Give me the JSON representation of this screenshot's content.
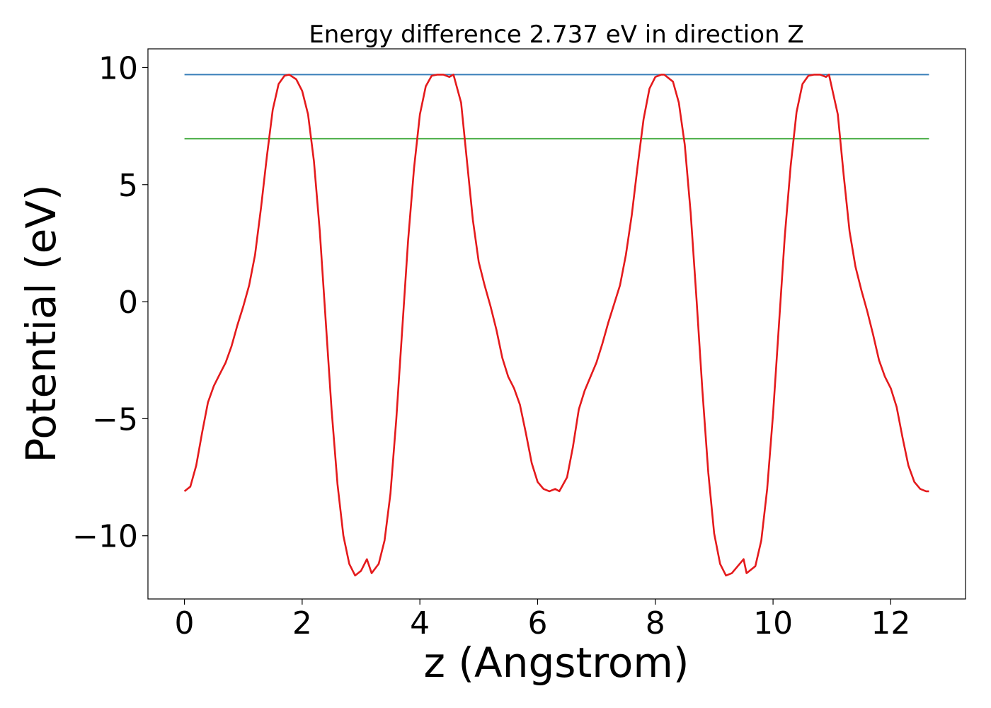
{
  "chart_data": {
    "type": "line",
    "title": "Energy difference 2.737 eV in direction Z",
    "xlabel": "z (Angstrom)",
    "ylabel": "Potential (eV)",
    "xlim": [
      -0.62,
      13.27
    ],
    "ylim": [
      -12.7,
      10.8
    ],
    "xticks": [
      0,
      2,
      4,
      6,
      8,
      10,
      12
    ],
    "xtick_labels": [
      "0",
      "2",
      "4",
      "6",
      "8",
      "10",
      "12"
    ],
    "yticks": [
      -10,
      -5,
      0,
      5,
      10
    ],
    "ytick_labels": [
      "−10",
      "−5",
      "0",
      "5",
      "10"
    ],
    "grid": false,
    "legend": "none",
    "series": [
      {
        "color": "#e41a1c",
        "x": [
          0.0,
          0.1,
          0.2,
          0.3,
          0.4,
          0.5,
          0.6,
          0.7,
          0.8,
          0.9,
          1.0,
          1.1,
          1.2,
          1.3,
          1.4,
          1.5,
          1.6,
          1.7,
          1.78,
          1.9,
          2.0,
          2.1,
          2.2,
          2.3,
          2.4,
          2.5,
          2.6,
          2.7,
          2.8,
          2.9,
          3.0,
          3.1,
          3.18,
          3.3,
          3.4,
          3.5,
          3.6,
          3.7,
          3.8,
          3.9,
          4.0,
          4.1,
          4.2,
          4.3,
          4.4,
          4.5,
          4.57,
          4.7,
          4.8,
          4.9,
          5.0,
          5.1,
          5.2,
          5.3,
          5.4,
          5.5,
          5.6,
          5.7,
          5.8,
          5.9,
          6.0,
          6.1,
          6.2,
          6.3,
          6.37,
          6.5,
          6.6,
          6.7,
          6.8,
          6.9,
          7.0,
          7.1,
          7.2,
          7.3,
          7.4,
          7.5,
          7.6,
          7.7,
          7.8,
          7.9,
          8.0,
          8.1,
          8.15,
          8.3,
          8.4,
          8.5,
          8.6,
          8.7,
          8.8,
          8.9,
          9.0,
          9.1,
          9.2,
          9.3,
          9.4,
          9.5,
          9.55,
          9.7,
          9.8,
          9.9,
          10.0,
          10.1,
          10.2,
          10.3,
          10.4,
          10.5,
          10.6,
          10.7,
          10.8,
          10.9,
          10.95,
          11.1,
          11.2,
          11.3,
          11.4,
          11.5,
          11.6,
          11.7,
          11.8,
          11.9,
          12.0,
          12.1,
          12.2,
          12.3,
          12.4,
          12.5,
          12.6,
          12.65
        ],
        "y": [
          -8.1,
          -7.9,
          -7.0,
          -5.6,
          -4.3,
          -3.6,
          -3.1,
          -2.6,
          -1.9,
          -1.0,
          -0.2,
          0.7,
          2.0,
          4.0,
          6.2,
          8.2,
          9.3,
          9.65,
          9.7,
          9.5,
          9.0,
          8.0,
          6.0,
          3.0,
          -0.8,
          -4.6,
          -7.8,
          -10.0,
          -11.2,
          -11.7,
          -11.5,
          -11.0,
          -11.6,
          -11.2,
          -10.2,
          -8.2,
          -5.0,
          -1.2,
          2.6,
          5.7,
          8.0,
          9.2,
          9.65,
          9.7,
          9.7,
          9.6,
          9.7,
          8.5,
          6.0,
          3.5,
          1.7,
          0.7,
          -0.2,
          -1.2,
          -2.4,
          -3.2,
          -3.7,
          -4.4,
          -5.6,
          -6.9,
          -7.7,
          -8.0,
          -8.1,
          -8.0,
          -8.1,
          -7.5,
          -6.2,
          -4.6,
          -3.8,
          -3.2,
          -2.6,
          -1.8,
          -0.9,
          -0.1,
          0.7,
          2.0,
          3.7,
          5.8,
          7.8,
          9.1,
          9.6,
          9.7,
          9.7,
          9.4,
          8.5,
          6.7,
          3.8,
          0.1,
          -3.8,
          -7.3,
          -9.9,
          -11.2,
          -11.7,
          -11.6,
          -11.3,
          -11.0,
          -11.6,
          -11.3,
          -10.2,
          -8.0,
          -4.8,
          -1.0,
          2.8,
          5.8,
          8.1,
          9.3,
          9.65,
          9.7,
          9.7,
          9.6,
          9.7,
          8.0,
          5.4,
          3.0,
          1.5,
          0.5,
          -0.4,
          -1.4,
          -2.5,
          -3.2,
          -3.7,
          -4.5,
          -5.8,
          -7.0,
          -7.7,
          -8.0,
          -8.1,
          -8.1
        ]
      },
      {
        "color": "#377eb8",
        "x": [
          0.0,
          12.65
        ],
        "y": [
          9.7,
          9.7
        ]
      },
      {
        "color": "#4daf4a",
        "x": [
          0.0,
          12.65
        ],
        "y": [
          6.963,
          6.963
        ]
      }
    ]
  }
}
